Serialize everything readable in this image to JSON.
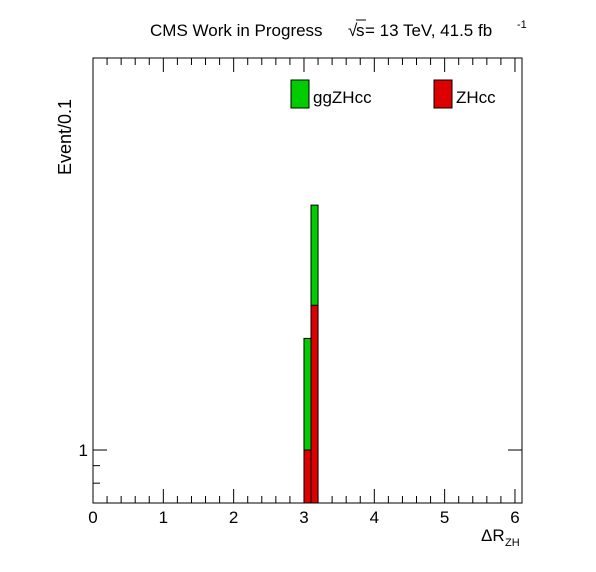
{
  "header": {
    "experiment": "CMS Work in Progress",
    "sqrt_symbol": "√",
    "energy_s": "s",
    "energy_rest": " = 13 TeV, 41.5 fb",
    "lumi_exponent": "-1"
  },
  "chart_data": {
    "type": "bar",
    "stacked": true,
    "ylabel": "Event/0.1",
    "xlabel_main": "ΔR",
    "xlabel_sub": "ZH",
    "xlim": [
      0,
      6.1
    ],
    "y_scale": "log",
    "ylim": [
      0.7,
      14
    ],
    "x_ticks": [
      "0",
      "1",
      "2",
      "3",
      "4",
      "5",
      "6"
    ],
    "y_ticks": [
      "1"
    ],
    "bin_edges": [
      3.0,
      3.1,
      3.2
    ],
    "legend_placement": "top",
    "series": [
      {
        "name": "ZHcc",
        "color": "#dd0000",
        "values": [
          1.0,
          2.65
        ]
      },
      {
        "name": "ggZHcc",
        "color": "#00cc00",
        "values": [
          1.12,
          2.55
        ]
      }
    ]
  }
}
